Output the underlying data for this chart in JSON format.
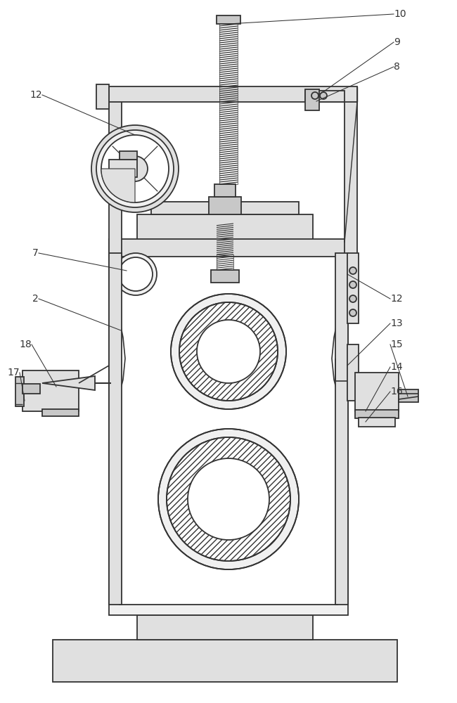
{
  "bg_color": "#ffffff",
  "lc": "#333333",
  "lw_main": 1.3,
  "lw_thin": 0.8,
  "fill_light": "#f0f0f0",
  "fill_mid": "#e0e0e0",
  "fill_dark": "#c8c8c8",
  "fill_white": "#ffffff",
  "hatch_pat": "////",
  "label_fs": 10,
  "labels": [
    "10",
    "9",
    "8",
    "12",
    "7",
    "2",
    "18",
    "17",
    "12",
    "13",
    "15",
    "14",
    "16"
  ]
}
